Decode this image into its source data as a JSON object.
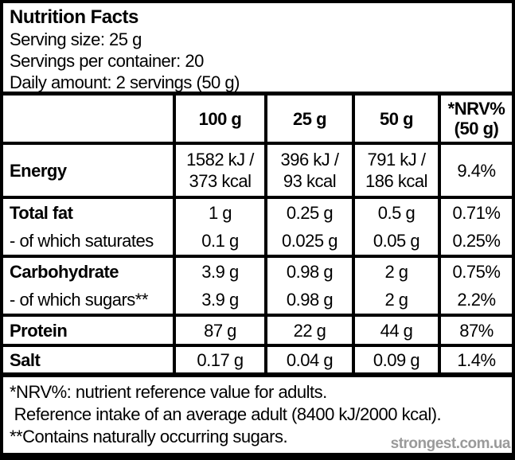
{
  "header": {
    "title": "Nutrition Facts",
    "serving_size": "Serving size: 25 g",
    "servings_per_container": "Servings per container: 20",
    "daily_amount": "Daily amount: 2 servings (50 g)"
  },
  "table": {
    "columns": [
      "",
      "100 g",
      "25 g",
      "50 g",
      "*NRV%\n(50 g)"
    ],
    "rows": [
      {
        "name": "Energy",
        "per_100g": "1582 kJ /\n373 kcal",
        "per_25g": "396 kJ /\n93 kcal",
        "per_50g": "791 kJ /\n186 kcal",
        "nrv": "9.4%"
      },
      {
        "name": "Total fat",
        "per_100g": "1 g",
        "per_25g": "0.25 g",
        "per_50g": "0.5 g",
        "nrv": "0.71%"
      },
      {
        "name": "- of which saturates",
        "per_100g": "0.1 g",
        "per_25g": "0.025 g",
        "per_50g": "0.05 g",
        "nrv": "0.25%"
      },
      {
        "name": "Carbohydrate",
        "per_100g": "3.9 g",
        "per_25g": "0.98 g",
        "per_50g": "2 g",
        "nrv": "0.75%"
      },
      {
        "name": "- of which sugars**",
        "per_100g": "3.9 g",
        "per_25g": "0.98 g",
        "per_50g": "2 g",
        "nrv": "2.2%"
      },
      {
        "name": "Protein",
        "per_100g": "87 g",
        "per_25g": "22 g",
        "per_50g": "44 g",
        "nrv": "87%"
      },
      {
        "name": "Salt",
        "per_100g": "0.17 g",
        "per_25g": "0.04 g",
        "per_50g": "0.09 g",
        "nrv": "1.4%"
      }
    ]
  },
  "footnotes": {
    "nrv_note": "*NRV%: nutrient reference value for adults.",
    "reference_note": " Reference intake of an average adult (8400 kJ/2000 kcal).",
    "sugars_note": "**Contains naturally occurring sugars."
  },
  "watermark": "strongest.com.ua",
  "colors": {
    "text": "#000000",
    "background": "#ffffff",
    "border": "#000000",
    "watermark": "#9a9a9a"
  }
}
